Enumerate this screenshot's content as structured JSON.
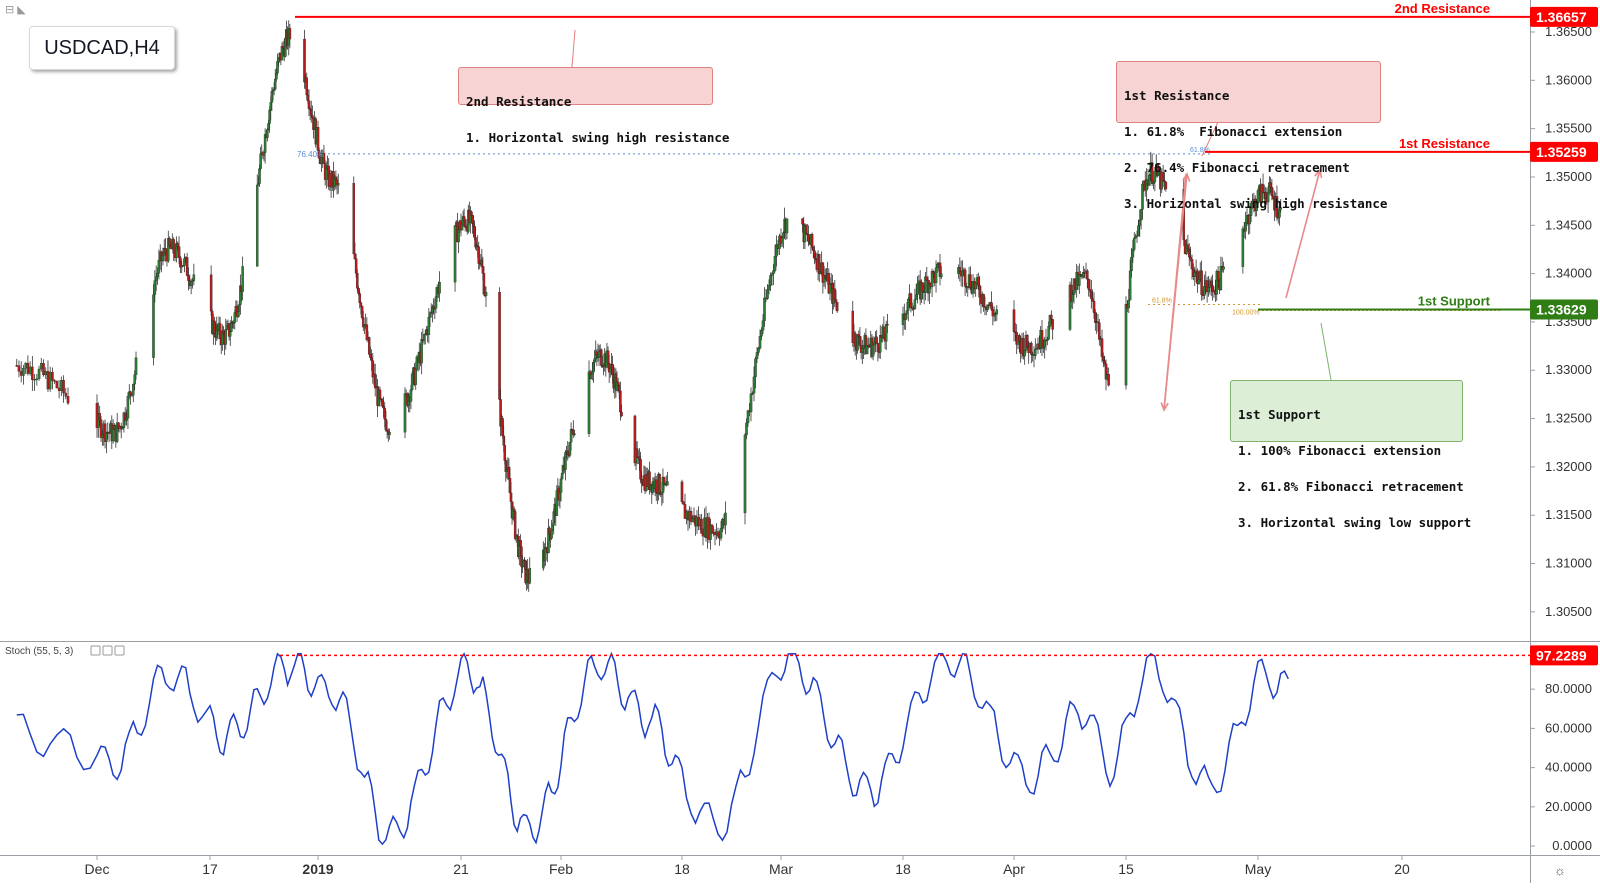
{
  "symbol": "USDCAD,H4",
  "annotations": {
    "second_resistance_box": {
      "lines": [
        "2nd Resistance",
        "1. Horizontal swing high resistance"
      ]
    },
    "first_resistance_box": {
      "lines": [
        "1st Resistance",
        "1. 61.8%  Fibonacci extension",
        "2. 76.4% Fibonacci retracement",
        "3. Horizontal swing high resistance"
      ]
    },
    "first_support_box": {
      "lines": [
        "1st Support",
        "1. 100% Fibonacci extension",
        "2. 61.8% Fibonacci retracement",
        "3. Horizontal swing low support"
      ]
    }
  },
  "level_labels": {
    "second_resistance": "2nd Resistance",
    "first_resistance": "1st Resistance",
    "first_support": "1st Support"
  },
  "fib_labels": {
    "r764": "76.40%",
    "ext618": "61.8%",
    "ret618": "61.8%",
    "ext100": "100.00%"
  },
  "indicator": {
    "name": "Stoch (55, 5, 3)"
  },
  "colors": {
    "resistance": "#ff0000",
    "support": "#2f7d14",
    "up_candle": "#2e7d32",
    "down_candle": "#b71c1c",
    "stoch_line": "#1e40c8",
    "fib_blue": "#5b8bd8",
    "fib_orange": "#d09a30",
    "arrow": "#e88a8a"
  },
  "chart_data": [
    {
      "type": "candlestick",
      "title": "USDCAD,H4",
      "x_tick_labels": [
        "Dec",
        "17",
        "2019",
        "21",
        "Feb",
        "18",
        "Mar",
        "18",
        "Apr",
        "15",
        "May",
        "20"
      ],
      "y_tick_labels": [
        "1.36500",
        "1.36000",
        "1.35500",
        "1.35000",
        "1.34500",
        "1.34000",
        "1.33500",
        "1.33000",
        "1.32500",
        "1.32000",
        "1.31500",
        "1.31000",
        "1.30500"
      ],
      "ylim": [
        1.3025,
        1.368
      ],
      "levels": [
        {
          "name": "2nd Resistance",
          "value": 1.36657
        },
        {
          "name": "1st Resistance",
          "value": 1.35259
        },
        {
          "name": "1st Support",
          "value": 1.33629
        }
      ],
      "series": [
        {
          "x": [
            "Nov 26",
            "Dec 3",
            "Dec 10",
            "Dec 17",
            "Dec 27",
            "Jan 2",
            "Jan 10",
            "Jan 21",
            "Jan 31",
            "Feb 11",
            "Feb 18",
            "Feb 27",
            "Mar 7",
            "Mar 18",
            "Mar 29",
            "Apr 8",
            "Apr 15",
            "Apr 18",
            "Apr 23",
            "Apr 30",
            "May 7",
            "May 10"
          ],
          "values": [
            1.3305,
            1.3235,
            1.3425,
            1.3335,
            1.3645,
            1.3495,
            1.3245,
            1.3455,
            1.3085,
            1.3315,
            1.3185,
            1.3135,
            1.3455,
            1.3325,
            1.3405,
            1.3325,
            1.3395,
            1.3285,
            1.3505,
            1.3385,
            1.3485,
            1.3455
          ]
        }
      ]
    },
    {
      "type": "line",
      "title": "Stoch (55, 5, 3)",
      "y_tick_labels": [
        "80.0000",
        "60.0000",
        "40.0000",
        "20.0000",
        "0.0000"
      ],
      "ylim": [
        -2,
        102
      ],
      "reference_level": 97.2289,
      "series": [
        {
          "x": [
            "Nov 26",
            "Dec 3",
            "Dec 10",
            "Dec 17",
            "Dec 27",
            "Jan 2",
            "Jan 10",
            "Jan 21",
            "Jan 31",
            "Feb 11",
            "Feb 18",
            "Feb 27",
            "Mar 7",
            "Mar 18",
            "Mar 29",
            "Apr 8",
            "Apr 15",
            "Apr 18",
            "Apr 23",
            "Apr 30",
            "May 7",
            "May 10"
          ],
          "values": [
            58,
            42,
            88,
            55,
            93,
            78,
            5,
            90,
            8,
            93,
            65,
            10,
            97,
            28,
            95,
            35,
            70,
            40,
            93,
            30,
            88,
            80
          ]
        }
      ]
    }
  ]
}
